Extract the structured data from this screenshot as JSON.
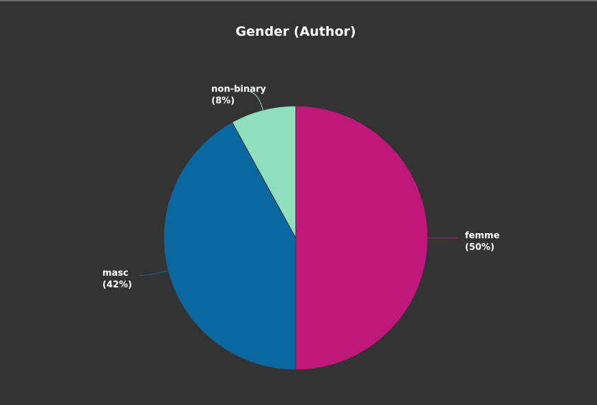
{
  "chart_data": {
    "type": "pie",
    "title": "Gender (Author)",
    "categories": [
      "femme",
      "masc",
      "non-binary"
    ],
    "values": [
      50,
      42,
      8
    ],
    "value_labels": [
      "(50%)",
      "(42%)",
      "(8%)"
    ],
    "colors": [
      "#c0177a",
      "#0b67a0",
      "#8ddfbd"
    ]
  }
}
